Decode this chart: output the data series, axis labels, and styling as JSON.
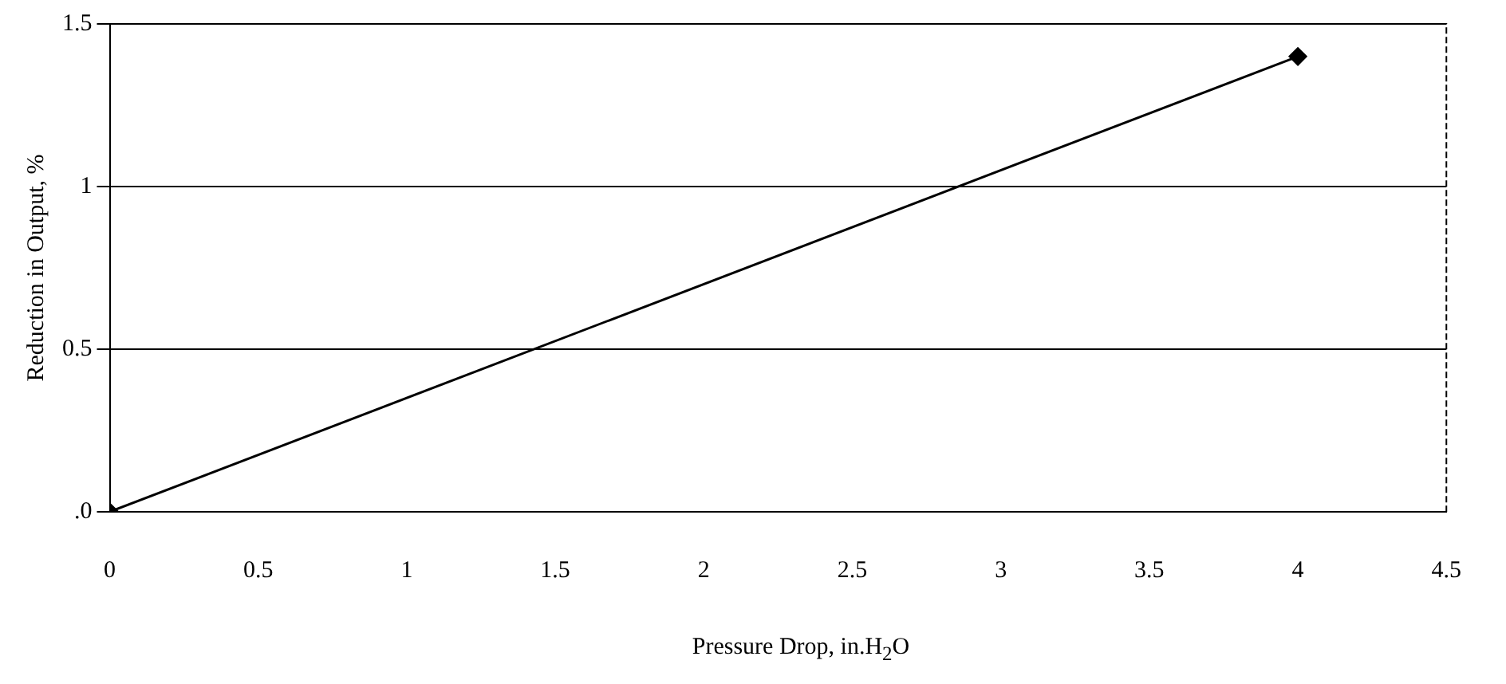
{
  "chart_data": {
    "type": "line",
    "xlabel": "Pressure Drop, in.H$_{2}$O",
    "ylabel": "Reduction in Output, %",
    "x": [
      0,
      4
    ],
    "series": [
      {
        "color": "#000000",
        "values": [
          0,
          1.4
        ]
      }
    ],
    "xlim": [
      0,
      4.5
    ],
    "xticks": [
      0,
      0.5,
      1,
      1.5,
      2,
      2.5,
      3,
      3.5,
      4,
      4.5
    ],
    "ylim": [
      0,
      1.5
    ],
    "yticks": [
      {
        "value": 0,
        "label": ".0"
      },
      0.5,
      1,
      1.5
    ],
    "grid": "y",
    "legend": false,
    "marker": "diamond",
    "line_style": "solid"
  }
}
